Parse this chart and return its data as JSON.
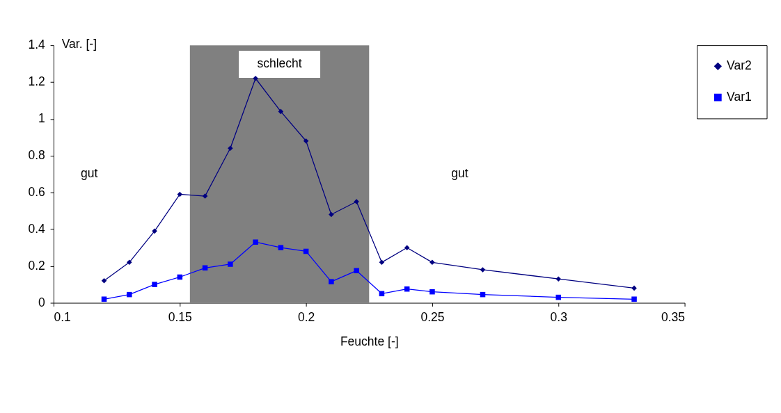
{
  "chart_data": {
    "type": "line",
    "xlabel": "Feuchte [-]",
    "ylabel": "Var. [-]",
    "xlim": [
      0.1,
      0.35
    ],
    "xticks": [
      0.1,
      0.15,
      0.2,
      0.25,
      0.3,
      0.35
    ],
    "ylim": [
      0,
      1.4
    ],
    "yticks": [
      0,
      0.2,
      0.4,
      0.6,
      0.8,
      1,
      1.2,
      1.4
    ],
    "x": [
      0.12,
      0.13,
      0.14,
      0.15,
      0.16,
      0.17,
      0.18,
      0.19,
      0.2,
      0.21,
      0.22,
      0.23,
      0.24,
      0.25,
      0.27,
      0.3,
      0.33
    ],
    "series": [
      {
        "name": "Var2",
        "color": "#000080",
        "marker": "diamond",
        "values": [
          0.12,
          0.22,
          0.39,
          0.59,
          0.58,
          0.84,
          1.22,
          1.04,
          0.88,
          0.48,
          0.55,
          0.22,
          0.3,
          0.22,
          0.18,
          0.13,
          0.08
        ]
      },
      {
        "name": "Var1",
        "color": "#0000ff",
        "marker": "square",
        "values": [
          0.02,
          0.045,
          0.1,
          0.14,
          0.19,
          0.21,
          0.33,
          0.3,
          0.28,
          0.115,
          0.175,
          0.05,
          0.075,
          0.06,
          0.045,
          0.03,
          0.02
        ]
      }
    ],
    "bands": [
      {
        "axis": "x",
        "from": 0.154,
        "to": 0.225,
        "label": "schlecht",
        "color": "#808080"
      }
    ],
    "annotations": [
      "gut",
      "gut"
    ],
    "legend": "right",
    "grid": false,
    "line_style": "solid"
  }
}
